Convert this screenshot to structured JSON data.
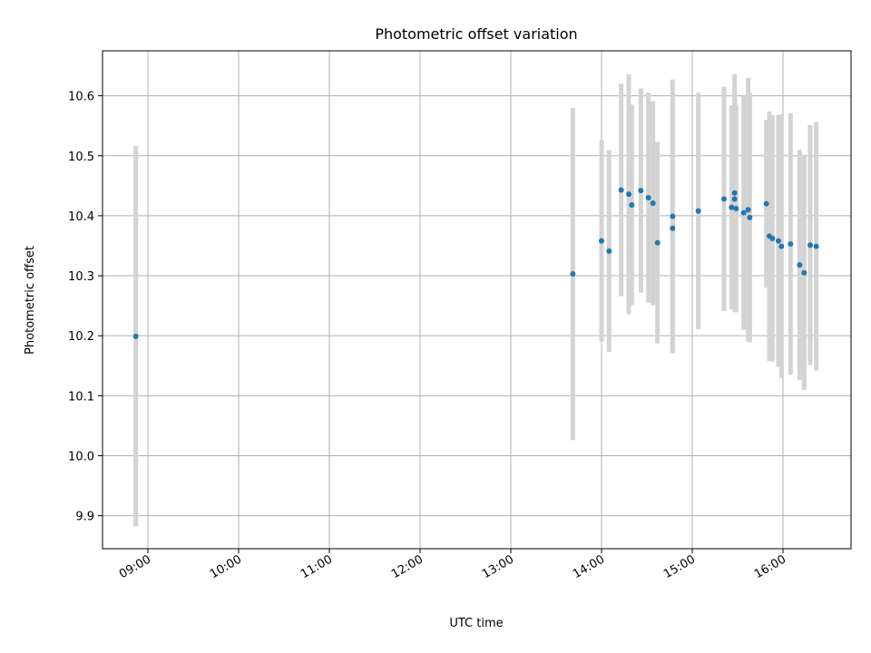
{
  "chart_data": {
    "type": "scatter",
    "title": "Photometric offset variation",
    "xlabel": "UTC time",
    "ylabel": "Photometric offset",
    "grid": true,
    "legend": "none",
    "xlim": [
      "08:30",
      "16:45"
    ],
    "ylim": [
      9.845,
      10.675
    ],
    "x_ticks": [
      "09:00",
      "10:00",
      "11:00",
      "12:00",
      "13:00",
      "14:00",
      "15:00",
      "16:00"
    ],
    "y_ticks": [
      "9.9",
      "10.0",
      "10.1",
      "10.2",
      "10.3",
      "10.4",
      "10.5",
      "10.6"
    ],
    "marker_color": "#1f77b4",
    "errorbar_color": "#d3d3d3",
    "points": [
      {
        "x": "08:52",
        "y": 10.199,
        "yerr": 0.317
      },
      {
        "x": "13:41",
        "y": 10.303,
        "yerr": 0.277
      },
      {
        "x": "14:00",
        "y": 10.358,
        "yerr": 0.168
      },
      {
        "x": "14:05",
        "y": 10.341,
        "yerr": 0.168
      },
      {
        "x": "14:13",
        "y": 10.443,
        "yerr": 0.177
      },
      {
        "x": "14:18",
        "y": 10.436,
        "yerr": 0.2
      },
      {
        "x": "14:20",
        "y": 10.418,
        "yerr": 0.167
      },
      {
        "x": "14:26",
        "y": 10.442,
        "yerr": 0.17
      },
      {
        "x": "14:31",
        "y": 10.43,
        "yerr": 0.175
      },
      {
        "x": "14:34",
        "y": 10.421,
        "yerr": 0.17
      },
      {
        "x": "14:37",
        "y": 10.355,
        "yerr": 0.168
      },
      {
        "x": "14:47",
        "y": 10.399,
        "yerr": 0.228
      },
      {
        "x": "14:47",
        "y": 10.379,
        "yerr": 0.208
      },
      {
        "x": "15:04",
        "y": 10.408,
        "yerr": 0.197
      },
      {
        "x": "15:21",
        "y": 10.428,
        "yerr": 0.187
      },
      {
        "x": "15:26",
        "y": 10.414,
        "yerr": 0.17
      },
      {
        "x": "15:28",
        "y": 10.438,
        "yerr": 0.198
      },
      {
        "x": "15:28",
        "y": 10.428,
        "yerr": 0.178
      },
      {
        "x": "15:29",
        "y": 10.412,
        "yerr": 0.173
      },
      {
        "x": "15:34",
        "y": 10.405,
        "yerr": 0.195
      },
      {
        "x": "15:37",
        "y": 10.41,
        "yerr": 0.22
      },
      {
        "x": "15:38",
        "y": 10.397,
        "yerr": 0.208
      },
      {
        "x": "15:49",
        "y": 10.42,
        "yerr": 0.14
      },
      {
        "x": "15:51",
        "y": 10.366,
        "yerr": 0.208
      },
      {
        "x": "15:53",
        "y": 10.362,
        "yerr": 0.205
      },
      {
        "x": "15:57",
        "y": 10.358,
        "yerr": 0.21
      },
      {
        "x": "15:59",
        "y": 10.349,
        "yerr": 0.22
      },
      {
        "x": "16:05",
        "y": 10.353,
        "yerr": 0.218
      },
      {
        "x": "16:11",
        "y": 10.318,
        "yerr": 0.192
      },
      {
        "x": "16:14",
        "y": 10.305,
        "yerr": 0.195
      },
      {
        "x": "16:18",
        "y": 10.351,
        "yerr": 0.2
      },
      {
        "x": "16:22",
        "y": 10.349,
        "yerr": 0.207
      }
    ]
  }
}
